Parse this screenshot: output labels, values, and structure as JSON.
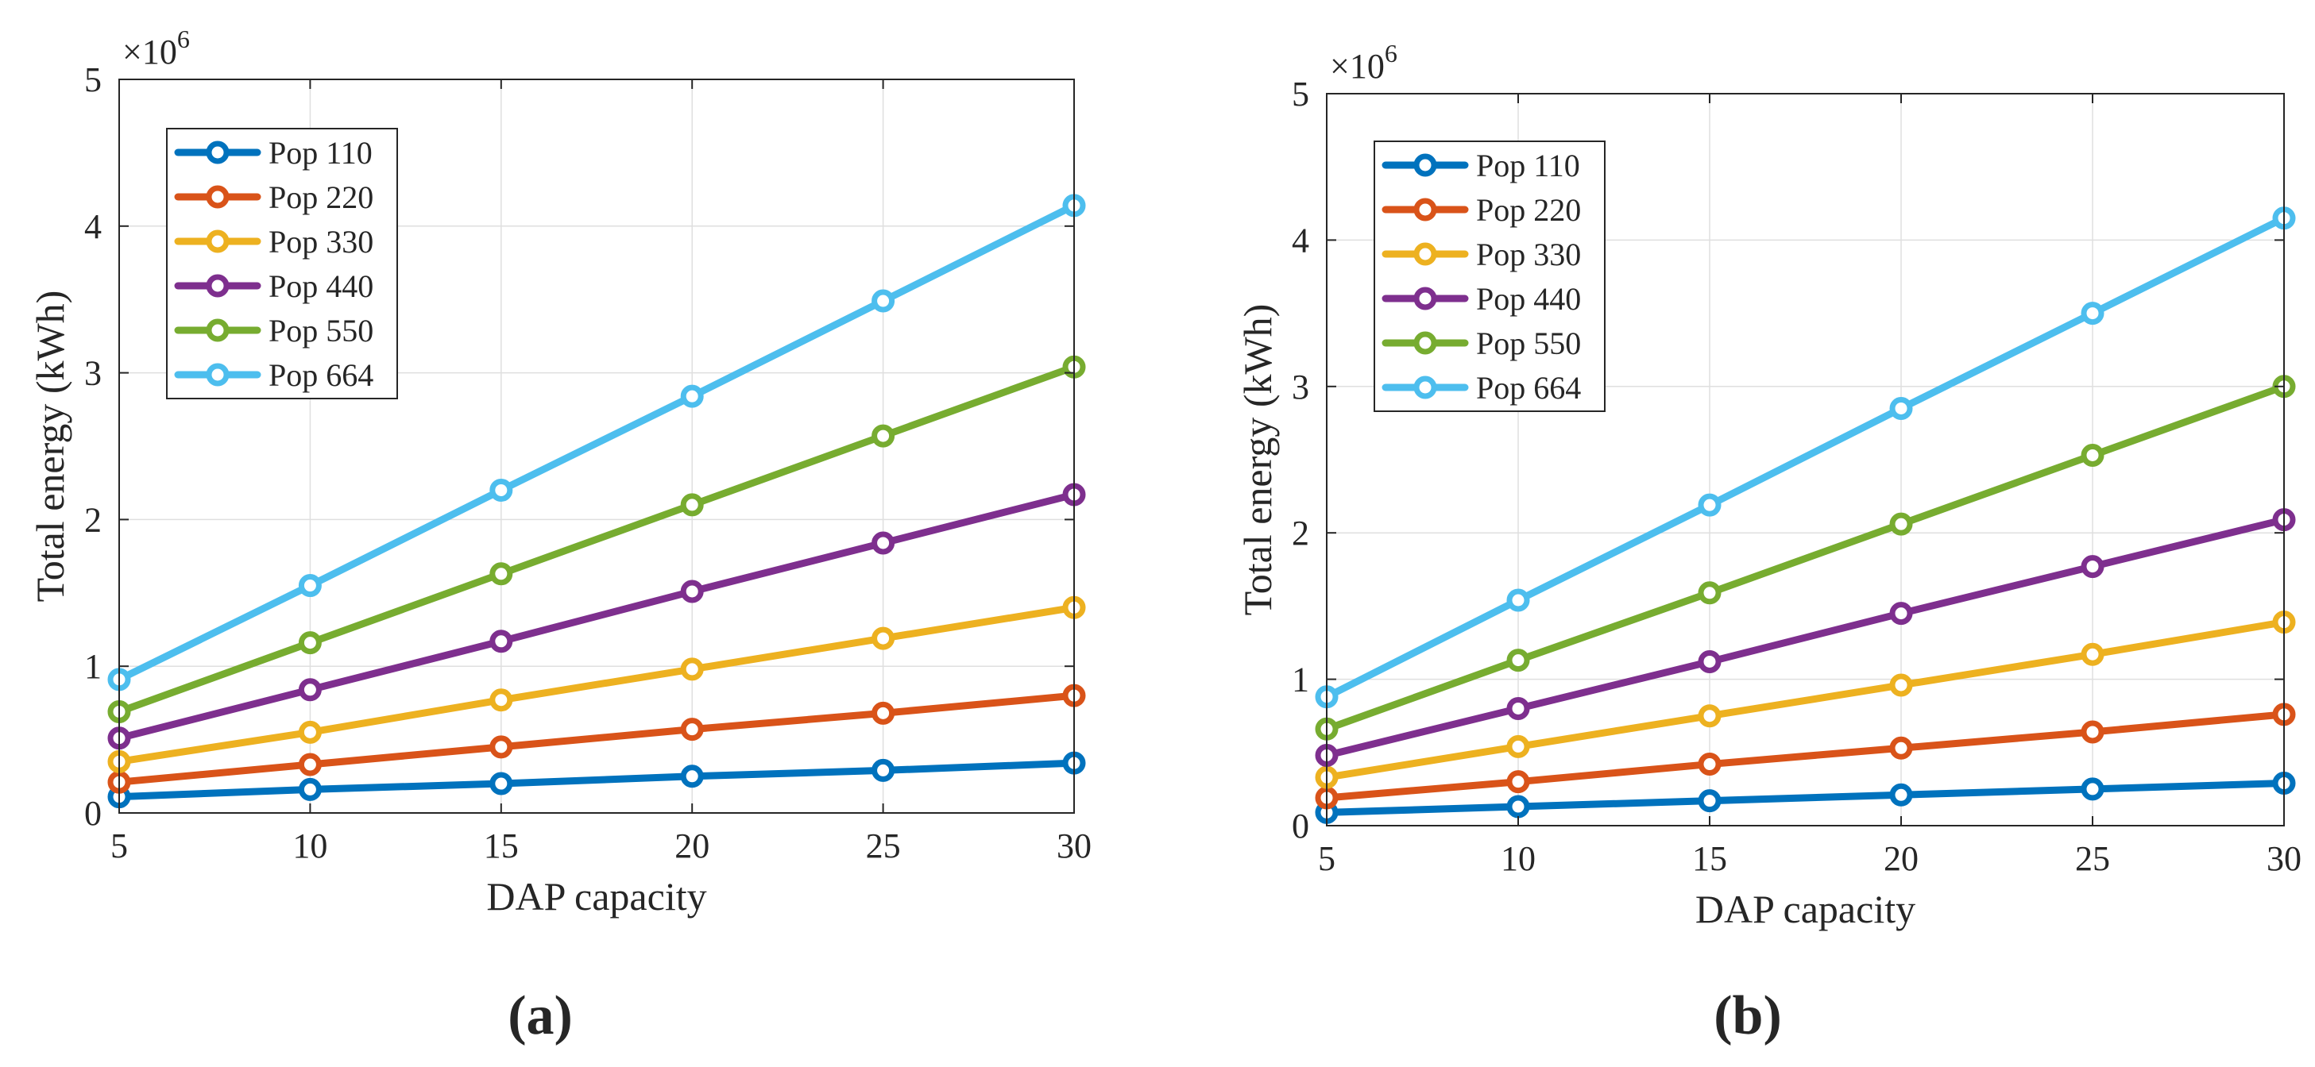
{
  "chart_data": [
    {
      "type": "line",
      "panel_label": "(a)",
      "title": "",
      "xlabel": "DAP capacity",
      "ylabel": "Total energy (kWh)",
      "y_exponent_label": "×10",
      "y_exponent_power": "6",
      "xlim": [
        5,
        30
      ],
      "ylim": [
        0,
        5
      ],
      "x_ticks": [
        "5",
        "10",
        "15",
        "20",
        "25",
        "30"
      ],
      "y_ticks": [
        "0",
        "1",
        "2",
        "3",
        "4",
        "5"
      ],
      "x": [
        5,
        10,
        15,
        20,
        25,
        30
      ],
      "grid": true,
      "legend_position": "top-left",
      "series": [
        {
          "name": "Pop 110",
          "color": "#0072BD",
          "values": [
            0.11,
            0.16,
            0.2,
            0.25,
            0.29,
            0.34
          ]
        },
        {
          "name": "Pop 220",
          "color": "#D95319",
          "values": [
            0.21,
            0.33,
            0.45,
            0.57,
            0.68,
            0.8
          ]
        },
        {
          "name": "Pop 330",
          "color": "#EDB120",
          "values": [
            0.35,
            0.55,
            0.77,
            0.98,
            1.19,
            1.4
          ]
        },
        {
          "name": "Pop 440",
          "color": "#7E2F8E",
          "values": [
            0.51,
            0.84,
            1.17,
            1.51,
            1.84,
            2.17
          ]
        },
        {
          "name": "Pop 550",
          "color": "#77AC30",
          "values": [
            0.69,
            1.16,
            1.63,
            2.1,
            2.57,
            3.04
          ]
        },
        {
          "name": "Pop 664",
          "color": "#4DBEEE",
          "values": [
            0.91,
            1.55,
            2.2,
            2.84,
            3.49,
            4.14
          ]
        }
      ]
    },
    {
      "type": "line",
      "panel_label": "(b)",
      "title": "",
      "xlabel": "DAP capacity",
      "ylabel": "Total energy (kWh)",
      "y_exponent_label": "×10",
      "y_exponent_power": "6",
      "xlim": [
        5,
        30
      ],
      "ylim": [
        0,
        5
      ],
      "x_ticks": [
        "5",
        "10",
        "15",
        "20",
        "25",
        "30"
      ],
      "y_ticks": [
        "0",
        "1",
        "2",
        "3",
        "4",
        "5"
      ],
      "x": [
        5,
        10,
        15,
        20,
        25,
        30
      ],
      "grid": true,
      "legend_position": "top-left",
      "series": [
        {
          "name": "Pop 110",
          "color": "#0072BD",
          "values": [
            0.09,
            0.13,
            0.17,
            0.21,
            0.25,
            0.29
          ]
        },
        {
          "name": "Pop 220",
          "color": "#D95319",
          "values": [
            0.19,
            0.3,
            0.42,
            0.53,
            0.64,
            0.76
          ]
        },
        {
          "name": "Pop 330",
          "color": "#EDB120",
          "values": [
            0.33,
            0.54,
            0.75,
            0.96,
            1.17,
            1.39
          ]
        },
        {
          "name": "Pop 440",
          "color": "#7E2F8E",
          "values": [
            0.48,
            0.8,
            1.12,
            1.45,
            1.77,
            2.09
          ]
        },
        {
          "name": "Pop 550",
          "color": "#77AC30",
          "values": [
            0.66,
            1.13,
            1.59,
            2.06,
            2.53,
            3.0
          ]
        },
        {
          "name": "Pop 664",
          "color": "#4DBEEE",
          "values": [
            0.88,
            1.54,
            2.19,
            2.85,
            3.5,
            4.15
          ]
        }
      ]
    }
  ]
}
